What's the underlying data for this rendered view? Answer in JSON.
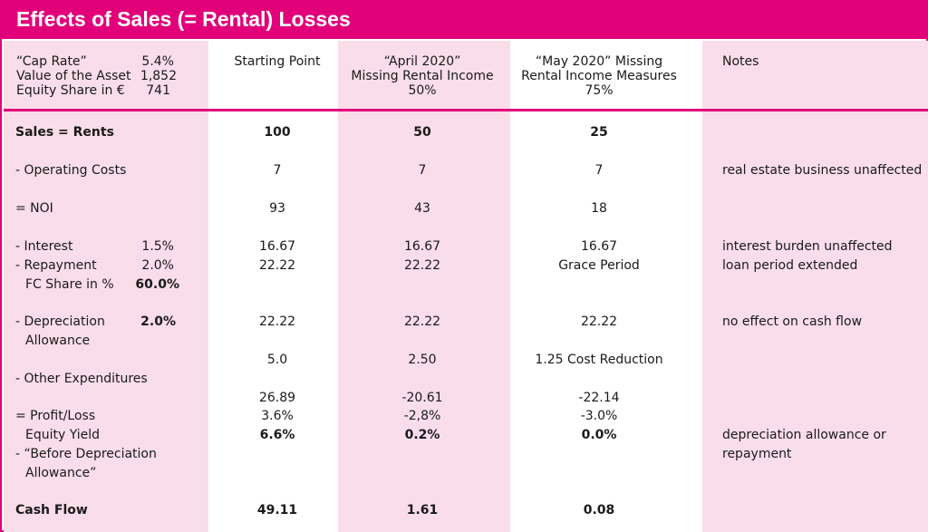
{
  "title": "Effects of Sales (= Rental) Losses",
  "params": {
    "cap_rate_label": "“Cap Rate”",
    "cap_rate_value": "5.4%",
    "asset_label": "Value of the Asset",
    "asset_value": "1,852",
    "equity_label": "Equity Share in €",
    "equity_value": "741"
  },
  "columns": {
    "start": "Starting Point",
    "april_1": "“April 2020”",
    "april_2": "Missing Rental Income",
    "april_3": "50%",
    "may_1": "“May 2020” Missing",
    "may_2": "Rental Income Measures",
    "may_3": "75%",
    "notes": "Notes"
  },
  "rows": {
    "sales": {
      "label": "Sales = Rents",
      "start": "100",
      "april": "50",
      "may": "25"
    },
    "opcost": {
      "label": "- Operating Costs",
      "start": "7",
      "april": "7",
      "may": "7",
      "note": "real estate business unaffected"
    },
    "noi": {
      "label": "= NOI",
      "start": "93",
      "april": "43",
      "may": "18"
    },
    "interest": {
      "label": "- Interest",
      "rate": "1.5%",
      "start": "16.67",
      "april": "16.67",
      "may": "16.67",
      "note": "interest burden unaffected"
    },
    "repayment": {
      "label": "- Repayment",
      "rate": "2.0%",
      "start": "22.22",
      "april": "22.22",
      "may": "Grace Period",
      "note": "loan period extended"
    },
    "fc": {
      "label": "FC Share in %",
      "rate": "60.0%"
    },
    "dep": {
      "label_1": "- Depreciation",
      "label_2": "Allowance",
      "rate": "2.0%",
      "start": "22.22",
      "april": "22.22",
      "may": "22.22",
      "note": "no effect on cash flow"
    },
    "other": {
      "label": "- Other Expenditures",
      "start": "5.0",
      "april": "2.50",
      "may": "1.25 Cost Reduction"
    },
    "profit": {
      "label": "= Profit/Loss",
      "start_1": "26.89",
      "april_1": "-20.61",
      "may_1": "-22.14",
      "start_2": "3.6%",
      "april_2": "-2,8%",
      "may_2": "-3.0%"
    },
    "yield": {
      "label": "Equity Yield",
      "start": "6.6%",
      "april": "0.2%",
      "may": "0.0%",
      "note_1": "depreciation allowance or",
      "note_2": "repayment"
    },
    "before": {
      "label_1": "- “Before Depreciation",
      "label_2": "Allowance”"
    },
    "cash": {
      "label": "Cash Flow",
      "start": "49.11",
      "april": "1.61",
      "may": "0.08"
    }
  }
}
